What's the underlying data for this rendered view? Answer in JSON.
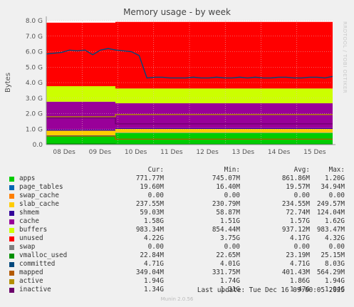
{
  "chart_data": {
    "type": "area",
    "title": "Memory usage - by week",
    "ylabel": "Bytes",
    "watermark": "RRDTOOL / TOBI OETIKER",
    "ylim": [
      0,
      8.0
    ],
    "y_ticks": [
      "0.0",
      "1.0 G",
      "2.0 G",
      "3.0 G",
      "4.0 G",
      "5.0 G",
      "6.0 G",
      "7.0 G",
      "8.0 G"
    ],
    "x_labels": [
      "08 Des",
      "09 Des",
      "10 Des",
      "11 Des",
      "12 Des",
      "13 Des",
      "14 Des",
      "15 Des"
    ],
    "columns": [
      "Cur:",
      "Min:",
      "Avg:",
      "Max:"
    ],
    "series": [
      {
        "name": "apps",
        "color": "#00cc00",
        "cur": "771.77M",
        "min": "745.07M",
        "avg": "861.86M",
        "max": "1.20G"
      },
      {
        "name": "page_tables",
        "color": "#0066b3",
        "cur": "19.60M",
        "min": "16.40M",
        "avg": "19.57M",
        "max": "34.94M"
      },
      {
        "name": "swap_cache",
        "color": "#ff8000",
        "cur": "0.00",
        "min": "0.00",
        "avg": "0.00",
        "max": "0.00"
      },
      {
        "name": "slab_cache",
        "color": "#ffcc00",
        "cur": "237.55M",
        "min": "230.79M",
        "avg": "234.55M",
        "max": "249.57M"
      },
      {
        "name": "shmem",
        "color": "#330099",
        "cur": "59.03M",
        "min": "58.87M",
        "avg": "72.74M",
        "max": "124.04M"
      },
      {
        "name": "cache",
        "color": "#990099",
        "cur": "1.58G",
        "min": "1.51G",
        "avg": "1.57G",
        "max": "1.62G"
      },
      {
        "name": "buffers",
        "color": "#ccff00",
        "cur": "983.34M",
        "min": "854.44M",
        "avg": "937.12M",
        "max": "983.47M"
      },
      {
        "name": "unused",
        "color": "#ff0000",
        "cur": "4.22G",
        "min": "3.75G",
        "avg": "4.17G",
        "max": "4.32G"
      },
      {
        "name": "swap",
        "color": "#808080",
        "cur": "0.00",
        "min": "0.00",
        "avg": "0.00",
        "max": "0.00"
      },
      {
        "name": "vmalloc_used",
        "color": "#008f00",
        "cur": "22.84M",
        "min": "22.65M",
        "avg": "23.19M",
        "max": "25.15M"
      },
      {
        "name": "committed",
        "color": "#00487d",
        "cur": "4.71G",
        "min": "4.01G",
        "avg": "4.71G",
        "max": "8.03G"
      },
      {
        "name": "mapped",
        "color": "#b35a00",
        "cur": "349.04M",
        "min": "331.75M",
        "avg": "401.43M",
        "max": "564.29M"
      },
      {
        "name": "active",
        "color": "#b38f00",
        "cur": "1.94G",
        "min": "1.74G",
        "avg": "1.86G",
        "max": "1.94G"
      },
      {
        "name": "inactive",
        "color": "#6b006b",
        "cur": "1.34G",
        "min": "1.31G",
        "avg": "1.47G",
        "max": "1.94G"
      }
    ],
    "committed_line": [
      5.85,
      5.9,
      5.95,
      6.1,
      6.05,
      6.1,
      5.8,
      6.1,
      6.2,
      6.1,
      6.05,
      6.0,
      5.75,
      4.3,
      4.35,
      4.35,
      4.3,
      4.3,
      4.3,
      4.35,
      4.3,
      4.3,
      4.35,
      4.3,
      4.3,
      4.35,
      4.3,
      4.35,
      4.3,
      4.3,
      4.35,
      4.35,
      4.3,
      4.3,
      4.35,
      4.35,
      4.3,
      4.4
    ]
  },
  "last_update": "Last update: Tue Dec 16 09:00:05 2025",
  "version": "Munin 2.0.56"
}
